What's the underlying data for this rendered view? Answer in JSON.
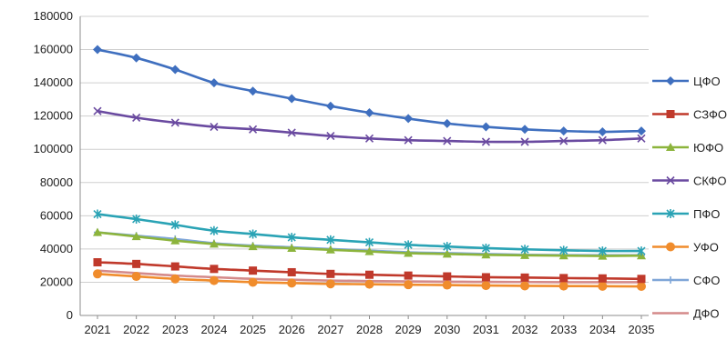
{
  "chart_data": {
    "type": "line",
    "title": "",
    "xlabel": "",
    "ylabel": "",
    "ylim": [
      0,
      180000
    ],
    "yticks": [
      0,
      20000,
      40000,
      60000,
      80000,
      100000,
      120000,
      140000,
      160000,
      180000
    ],
    "ytick_labels": [
      "0",
      "20000",
      "40000",
      "60000",
      "80000",
      "100000",
      "120000",
      "140000",
      "160000",
      "180000"
    ],
    "categories": [
      "2021",
      "2022",
      "2023",
      "2024",
      "2025",
      "2026",
      "2027",
      "2028",
      "2029",
      "2030",
      "2031",
      "2032",
      "2033",
      "2034",
      "2035"
    ],
    "grid": true,
    "legend_position": "right",
    "series": [
      {
        "name": "ЦФО",
        "color": "#3f6fbf",
        "marker": "diamond",
        "values": [
          160000,
          155000,
          148000,
          140000,
          135000,
          130500,
          126000,
          122000,
          118500,
          115500,
          113500,
          112000,
          111000,
          110500,
          111000
        ]
      },
      {
        "name": "СЗФО",
        "color": "#c0392b",
        "marker": "square",
        "values": [
          32000,
          31000,
          29500,
          28000,
          27000,
          26000,
          25000,
          24500,
          24000,
          23500,
          23000,
          22800,
          22500,
          22300,
          22000
        ]
      },
      {
        "name": "ЮФО",
        "color": "#8cb43c",
        "marker": "triangle",
        "values": [
          50000,
          47500,
          45000,
          43000,
          41500,
          40500,
          39500,
          38500,
          37500,
          37000,
          36500,
          36200,
          36000,
          35800,
          36000
        ]
      },
      {
        "name": "СКФО",
        "color": "#6a4aa0",
        "marker": "x",
        "values": [
          123000,
          119000,
          116000,
          113500,
          112000,
          110000,
          108000,
          106500,
          105500,
          105000,
          104500,
          104500,
          105000,
          105500,
          106500
        ]
      },
      {
        "name": "ПФО",
        "color": "#2aa3b5",
        "marker": "star",
        "values": [
          61000,
          58000,
          54500,
          51000,
          49000,
          47000,
          45500,
          44000,
          42500,
          41500,
          40500,
          39800,
          39200,
          38800,
          38800
        ]
      },
      {
        "name": "УФО",
        "color": "#f08c2c",
        "marker": "circle",
        "values": [
          25000,
          23500,
          22000,
          21000,
          20000,
          19500,
          19000,
          18800,
          18500,
          18300,
          18000,
          17800,
          17700,
          17600,
          17500
        ]
      },
      {
        "name": "СФО",
        "color": "#7fa6d8",
        "marker": "plus",
        "values": [
          50000,
          48000,
          46000,
          43500,
          42000,
          41000,
          40000,
          39000,
          38000,
          37500,
          37000,
          36500,
          36300,
          36200,
          36200
        ]
      },
      {
        "name": "ДФО",
        "color": "#d48a8a",
        "marker": "none",
        "values": [
          27000,
          25500,
          24000,
          23000,
          22000,
          21500,
          21000,
          20700,
          20500,
          20300,
          20200,
          20100,
          20000,
          20000,
          20000
        ]
      }
    ]
  }
}
